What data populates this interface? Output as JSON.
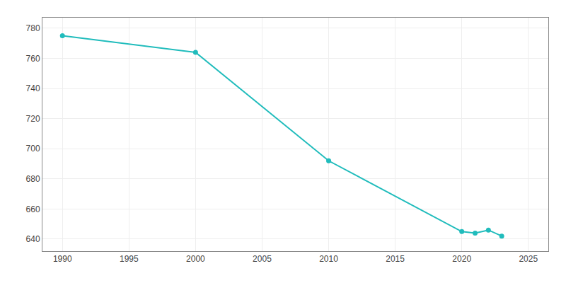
{
  "chart_data": {
    "type": "line",
    "x": [
      1990,
      2000,
      2010,
      2020,
      2021,
      2022,
      2023
    ],
    "values": [
      775,
      764,
      692,
      645,
      644,
      646,
      642
    ],
    "color": "#20BCBC",
    "marker": "circle",
    "xlim": [
      1988.5,
      2026.5
    ],
    "xticks": [
      1990,
      1995,
      2000,
      2005,
      2010,
      2015,
      2020,
      2025
    ],
    "ylim": [
      632,
      787
    ],
    "yticks": [
      640,
      660,
      680,
      700,
      720,
      740,
      760,
      780
    ],
    "grid": true
  }
}
